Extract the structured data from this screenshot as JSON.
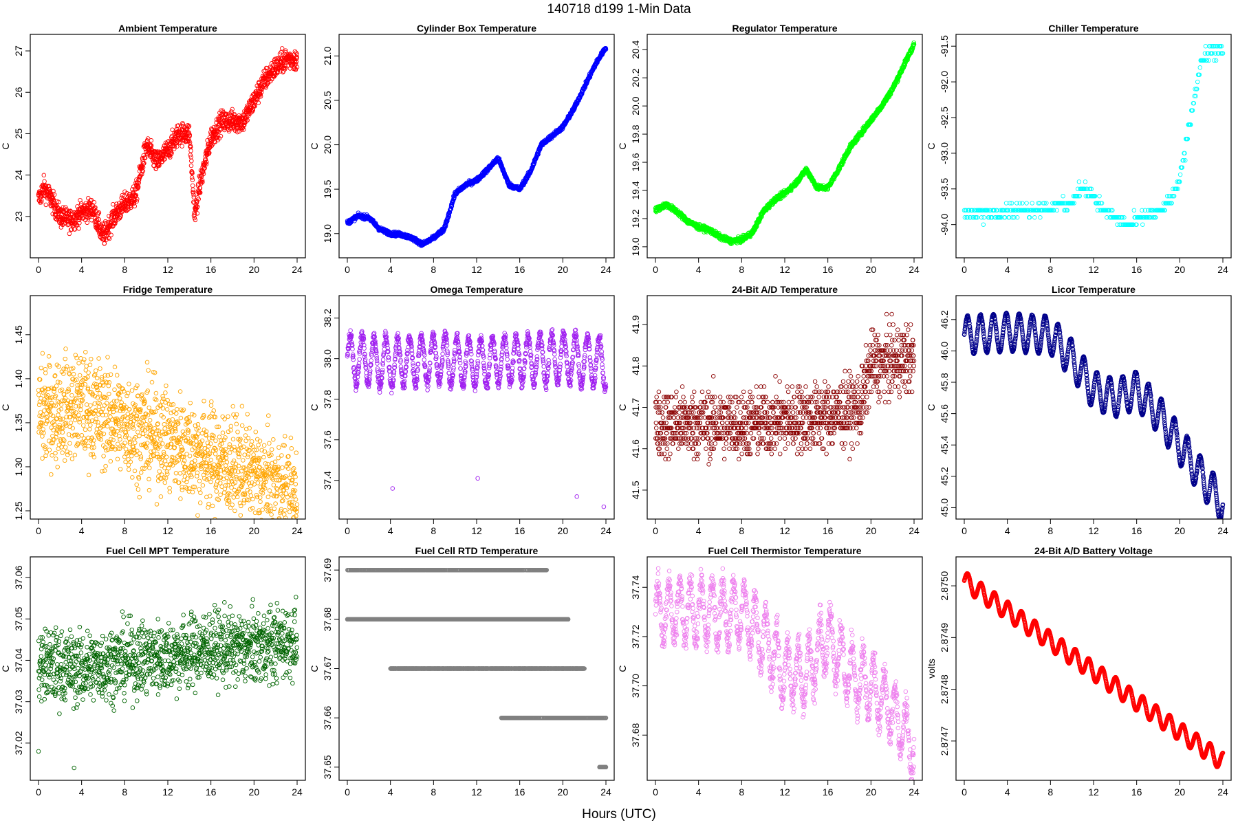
{
  "figure_title": "140718   d199   1-Min Data",
  "x_axis_label": "Hours (UTC)",
  "chart_data": [
    {
      "type": "scatter",
      "title": "Ambient Temperature",
      "ylabel": "C",
      "color": "#ff0000",
      "xlim": [
        0,
        24
      ],
      "ylim": [
        22.2,
        27.2
      ],
      "xticks": [
        0,
        4,
        8,
        12,
        16,
        20,
        24
      ],
      "yticks": [
        23,
        24,
        25,
        26,
        27
      ],
      "ytick_labels": [
        "23",
        "24",
        "25",
        "26",
        "27"
      ],
      "x": [
        0,
        0.5,
        1,
        2,
        3,
        4,
        5,
        6,
        7,
        8,
        9,
        10,
        11,
        12,
        13,
        14,
        14.5,
        15,
        16,
        17,
        18,
        19,
        20,
        21,
        22,
        23,
        24
      ],
      "y": [
        23.4,
        23.7,
        23.5,
        23.0,
        22.9,
        23.1,
        23.2,
        22.5,
        23.0,
        23.3,
        23.5,
        24.7,
        24.3,
        24.6,
        25.0,
        25.0,
        23.0,
        23.8,
        24.9,
        25.3,
        25.3,
        25.3,
        25.8,
        26.3,
        26.6,
        26.8,
        26.8
      ],
      "spread": 0.45,
      "n": 1400
    },
    {
      "type": "scatter",
      "title": "Cylinder Box Temperature",
      "ylabel": "C",
      "color": "#0000ff",
      "xlim": [
        0,
        24
      ],
      "ylim": [
        18.82,
        21.15
      ],
      "xticks": [
        0,
        4,
        8,
        12,
        16,
        20,
        24
      ],
      "yticks": [
        19.0,
        19.5,
        20.0,
        20.5,
        21.0
      ],
      "ytick_labels": [
        "19.0",
        "19.5",
        "20.0",
        "20.5",
        "21.0"
      ],
      "x": [
        0,
        1,
        2,
        3,
        4,
        5,
        6,
        7,
        8,
        9,
        10,
        11,
        12,
        13,
        14,
        15,
        16,
        17,
        18,
        19,
        20,
        21,
        22,
        23,
        24
      ],
      "y": [
        19.12,
        19.2,
        19.18,
        19.05,
        19.0,
        18.99,
        18.95,
        18.88,
        18.95,
        19.05,
        19.45,
        19.55,
        19.6,
        19.72,
        19.85,
        19.55,
        19.5,
        19.7,
        20.0,
        20.1,
        20.2,
        20.4,
        20.65,
        20.9,
        21.1
      ],
      "spread": 0.04,
      "n": 1400
    },
    {
      "type": "scatter",
      "title": "Regulator Temperature",
      "ylabel": "C",
      "color": "#00ff00",
      "xlim": [
        0,
        24
      ],
      "ylim": [
        18.98,
        20.45
      ],
      "xticks": [
        0,
        4,
        8,
        12,
        16,
        20,
        24
      ],
      "yticks": [
        19.0,
        19.2,
        19.4,
        19.6,
        19.8,
        20.0,
        20.2,
        20.4
      ],
      "ytick_labels": [
        "19.0",
        "19.2",
        "19.4",
        "19.6",
        "19.8",
        "20.0",
        "20.2",
        "20.4"
      ],
      "x": [
        0,
        1,
        2,
        3,
        4,
        5,
        6,
        7,
        8,
        9,
        10,
        11,
        12,
        13,
        14,
        15,
        16,
        17,
        18,
        19,
        20,
        21,
        22,
        23,
        24
      ],
      "y": [
        19.26,
        19.3,
        19.25,
        19.18,
        19.14,
        19.12,
        19.07,
        19.04,
        19.05,
        19.1,
        19.25,
        19.33,
        19.38,
        19.45,
        19.55,
        19.42,
        19.42,
        19.55,
        19.7,
        19.8,
        19.9,
        20.0,
        20.12,
        20.28,
        20.44
      ],
      "spread": 0.03,
      "n": 1400
    },
    {
      "type": "scatter",
      "title": "Chiller Temperature",
      "ylabel": "C",
      "color": "#00ffff",
      "xlim": [
        0,
        24
      ],
      "ylim": [
        -94.35,
        -91.45
      ],
      "xticks": [
        0,
        4,
        8,
        12,
        16,
        20,
        24
      ],
      "yticks": [
        -94.0,
        -93.5,
        -93.0,
        -92.5,
        -92.0,
        -91.5
      ],
      "ytick_labels": [
        "-94.0",
        "-93.5",
        "-93.0",
        "-92.5",
        "-92.0",
        "-91.5"
      ],
      "x": [
        0,
        2,
        4,
        6,
        8,
        10,
        11,
        12,
        13,
        14,
        15,
        16,
        17,
        18,
        19,
        20,
        21,
        22,
        23,
        24
      ],
      "y": [
        -93.85,
        -93.85,
        -93.8,
        -93.8,
        -93.75,
        -93.7,
        -93.45,
        -93.6,
        -93.8,
        -93.9,
        -94.0,
        -93.95,
        -93.85,
        -93.85,
        -93.7,
        -93.4,
        -92.5,
        -91.7,
        -91.55,
        -91.6
      ],
      "spread": 0.15,
      "quantum": 0.1,
      "n": 420
    },
    {
      "type": "scatter",
      "title": "Fridge Temperature",
      "ylabel": "C",
      "color": "#ffa500",
      "xlim": [
        0,
        24
      ],
      "ylim": [
        1.25,
        1.485
      ],
      "xticks": [
        0,
        4,
        8,
        12,
        16,
        20,
        24
      ],
      "yticks": [
        1.25,
        1.3,
        1.35,
        1.4,
        1.45
      ],
      "ytick_labels": [
        "1.25",
        "1.30",
        "1.35",
        "1.40",
        "1.45"
      ],
      "x": [
        0,
        4,
        8,
        12,
        16,
        20,
        22,
        24
      ],
      "y": [
        1.36,
        1.37,
        1.35,
        1.33,
        1.31,
        1.29,
        1.275,
        1.265
      ],
      "spread": 0.1,
      "n": 1400
    },
    {
      "type": "scatter",
      "title": "Omega Temperature",
      "ylabel": "C",
      "color": "#a020f0",
      "xlim": [
        0,
        24
      ],
      "ylim": [
        37.25,
        38.27
      ],
      "xticks": [
        0,
        4,
        8,
        12,
        16,
        20,
        24
      ],
      "yticks": [
        37.4,
        37.6,
        37.8,
        38.0,
        38.2
      ],
      "ytick_labels": [
        "37.4",
        "37.6",
        "37.8",
        "38.0",
        "38.2"
      ],
      "x": [
        0,
        4,
        8,
        12,
        16,
        20,
        24
      ],
      "y": [
        38.0,
        37.98,
        38.0,
        37.98,
        38.0,
        38.0,
        37.98
      ],
      "spread": 0.05,
      "wave_amp": 0.12,
      "wave_period": 1.1,
      "n": 1300,
      "outliers": [
        [
          4.2,
          37.36
        ],
        [
          12.1,
          37.41
        ],
        [
          21.3,
          37.32
        ],
        [
          23.8,
          37.27
        ]
      ]
    },
    {
      "type": "scatter",
      "title": "24-Bit A/D Temperature",
      "ylabel": "C",
      "color": "#8b0000",
      "xlim": [
        0,
        24
      ],
      "ylim": [
        41.45,
        41.95
      ],
      "xticks": [
        0,
        4,
        8,
        12,
        16,
        20,
        24
      ],
      "yticks": [
        41.5,
        41.6,
        41.7,
        41.8,
        41.9
      ],
      "ytick_labels": [
        "41.5",
        "41.6",
        "41.7",
        "41.8",
        "41.9"
      ],
      "x": [
        0,
        4,
        8,
        12,
        16,
        19,
        20,
        24
      ],
      "y": [
        41.66,
        41.66,
        41.66,
        41.67,
        41.68,
        41.7,
        41.8,
        41.82
      ],
      "spread": 0.14,
      "quantum": 0.0125,
      "n": 1300
    },
    {
      "type": "scatter",
      "title": "Licor Temperature",
      "ylabel": "C",
      "color": "#00008b",
      "xlim": [
        0,
        24
      ],
      "ylim": [
        44.98,
        46.3
      ],
      "xticks": [
        0,
        4,
        8,
        12,
        16,
        20,
        24
      ],
      "yticks": [
        45.0,
        45.2,
        45.4,
        45.6,
        45.8,
        46.0,
        46.2
      ],
      "ytick_labels": [
        "45.0",
        "45.2",
        "45.4",
        "45.6",
        "45.8",
        "46.0",
        "46.2"
      ],
      "x": [
        0,
        4,
        8,
        10,
        12,
        14,
        16,
        18,
        20,
        22,
        24
      ],
      "y": [
        46.1,
        46.12,
        46.1,
        45.95,
        45.75,
        45.7,
        45.75,
        45.6,
        45.4,
        45.2,
        45.02
      ],
      "spread": 0.01,
      "wave_amp": 0.12,
      "wave_period": 1.2,
      "n": 1400
    },
    {
      "type": "scatter",
      "title": "Fuel Cell MPT Temperature",
      "ylabel": "C",
      "color": "#006400",
      "xlim": [
        0,
        24
      ],
      "ylim": [
        37.013,
        37.063
      ],
      "xticks": [
        0,
        4,
        8,
        12,
        16,
        20,
        24
      ],
      "yticks": [
        37.02,
        37.03,
        37.04,
        37.05,
        37.06
      ],
      "ytick_labels": [
        "37.02",
        "37.03",
        "37.04",
        "37.05",
        "37.06"
      ],
      "x": [
        0,
        4,
        8,
        12,
        16,
        20,
        24
      ],
      "y": [
        37.039,
        37.038,
        37.04,
        37.041,
        37.043,
        37.043,
        37.045
      ],
      "spread": 0.015,
      "n": 1300,
      "outliers": [
        [
          0,
          37.018
        ],
        [
          3.3,
          37.014
        ]
      ]
    },
    {
      "type": "scatter",
      "title": "Fuel Cell RTD Temperature",
      "ylabel": "C",
      "color": "#808080",
      "xlim": [
        0,
        24
      ],
      "ylim": [
        37.649,
        37.691
      ],
      "xticks": [
        0,
        4,
        8,
        12,
        16,
        20,
        24
      ],
      "yticks": [
        37.65,
        37.66,
        37.67,
        37.68,
        37.69
      ],
      "ytick_labels": [
        "37.65",
        "37.66",
        "37.67",
        "37.68",
        "37.69"
      ],
      "levels": [
        {
          "y": 37.69,
          "from": 0,
          "to": 18.5,
          "density": 0.55
        },
        {
          "y": 37.68,
          "from": 0,
          "to": 20.5,
          "density": 0.8
        },
        {
          "y": 37.67,
          "from": 4,
          "to": 22,
          "density": 0.75
        },
        {
          "y": 37.66,
          "from": 14.3,
          "to": 24,
          "density": 0.6
        },
        {
          "y": 37.65,
          "from": 23.4,
          "to": 24,
          "density": 1.0
        }
      ],
      "n": 1300
    },
    {
      "type": "scatter",
      "title": "Fuel Cell Thermistor Temperature",
      "ylabel": "C",
      "color": "#ee82ee",
      "xlim": [
        0,
        24
      ],
      "ylim": [
        37.665,
        37.749
      ],
      "xticks": [
        0,
        4,
        8,
        12,
        16,
        20,
        24
      ],
      "yticks": [
        37.68,
        37.7,
        37.72,
        37.74
      ],
      "ytick_labels": [
        "37.68",
        "37.70",
        "37.72",
        "37.74"
      ],
      "x": [
        0,
        4,
        8,
        10,
        12,
        14,
        16,
        18,
        20,
        22,
        24
      ],
      "y": [
        37.73,
        37.73,
        37.73,
        37.72,
        37.705,
        37.705,
        37.72,
        37.705,
        37.7,
        37.69,
        37.675
      ],
      "spread": 0.01,
      "wave_amp": 0.012,
      "wave_period": 1.0,
      "n": 1300
    },
    {
      "type": "scatter",
      "title": "24-Bit A/D Battery Voltage",
      "ylabel": "volts",
      "color": "#ff0000",
      "xlim": [
        0,
        24
      ],
      "ylim": [
        2.87464,
        2.87504
      ],
      "xticks": [
        0,
        4,
        8,
        12,
        16,
        20,
        24
      ],
      "yticks": [
        2.8747,
        2.8748,
        2.8749,
        2.875
      ],
      "ytick_labels": [
        "2.8747",
        "2.8748",
        "2.8749",
        "2.8750"
      ],
      "x": [
        0,
        24
      ],
      "y": [
        2.87501,
        2.87466
      ],
      "spread": 6e-07,
      "wave_amp": 1.8e-05,
      "wave_period": 1.25,
      "n": 1400
    }
  ]
}
